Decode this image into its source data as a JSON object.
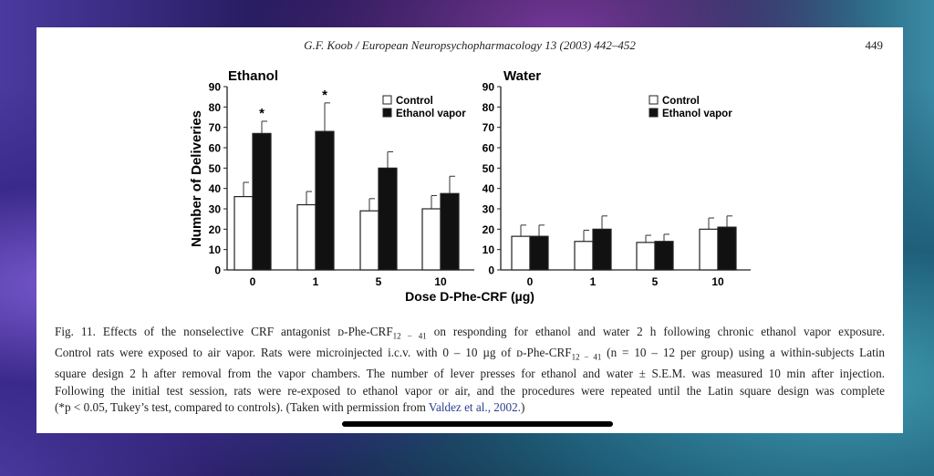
{
  "header": {
    "running_title": "G.F. Koob / European Neuropsychopharmacology 13 (2003) 442–452",
    "page_number": "449"
  },
  "chart_data": [
    {
      "type": "bar",
      "title": "Ethanol",
      "ylabel": "Number of Deliveries",
      "xlabel": "Dose D-Phe-CRF (µg)",
      "ylim": [
        0,
        90
      ],
      "yticks": [
        0,
        10,
        20,
        30,
        40,
        50,
        60,
        70,
        80,
        90
      ],
      "categories": [
        "0",
        "1",
        "5",
        "10"
      ],
      "legend": "top-right",
      "series": [
        {
          "name": "Control",
          "color": "#ffffff",
          "values": [
            36,
            32,
            29,
            30
          ],
          "sem": [
            7,
            6.5,
            6,
            6.5
          ]
        },
        {
          "name": "Ethanol vapor",
          "color": "#111111",
          "values": [
            67,
            68,
            50,
            37.5
          ],
          "sem": [
            6,
            14,
            8,
            8.5
          ]
        }
      ],
      "annotations": [
        {
          "category": "0",
          "text": "*"
        },
        {
          "category": "1",
          "text": "*"
        }
      ]
    },
    {
      "type": "bar",
      "title": "Water",
      "ylabel": "",
      "xlabel": "Dose D-Phe-CRF (µg)",
      "ylim": [
        0,
        90
      ],
      "yticks": [
        0,
        10,
        20,
        30,
        40,
        50,
        60,
        70,
        80,
        90
      ],
      "categories": [
        "0",
        "1",
        "5",
        "10"
      ],
      "legend": "top-right",
      "series": [
        {
          "name": "Control",
          "color": "#ffffff",
          "values": [
            16.5,
            14,
            13.5,
            20
          ],
          "sem": [
            5.5,
            5.5,
            3.5,
            5.5
          ]
        },
        {
          "name": "Ethanol vapor",
          "color": "#111111",
          "values": [
            16.5,
            20,
            14,
            21
          ],
          "sem": [
            5.5,
            6.5,
            3.5,
            5.5
          ]
        }
      ],
      "annotations": []
    }
  ],
  "caption": {
    "l1a": "Fig. 11. Effects of the nonselective CRF antagonist ᴅ-Phe-CRF",
    "l1sub": "12 − 41",
    "l1b": " on responding for ethanol and water 2 h following chronic ethanol vapor exposure.",
    "l2a": "Control rats were exposed to air vapor. Rats were microinjected i.c.v. with 0 – 10 µg of ᴅ-Phe-CRF",
    "l2sub": "12 − 41",
    "l2b": " (n = 10 – 12 per group) using a within-subjects Latin",
    "l3": "square design 2 h after removal from the vapor chambers. The number of lever presses for ethanol and water  ± S.E.M. was measured 10 min after injection.",
    "l4": "Following the initial test session, rats were re-exposed to ethanol vapor or air, and the procedures were repeated until the Latin square design was complete",
    "l5a": "(*p < 0.05, Tukey’s test, compared to controls). (Taken with permission from ",
    "l5link": "Valdez et al., 2002.",
    "l5b": ")"
  }
}
